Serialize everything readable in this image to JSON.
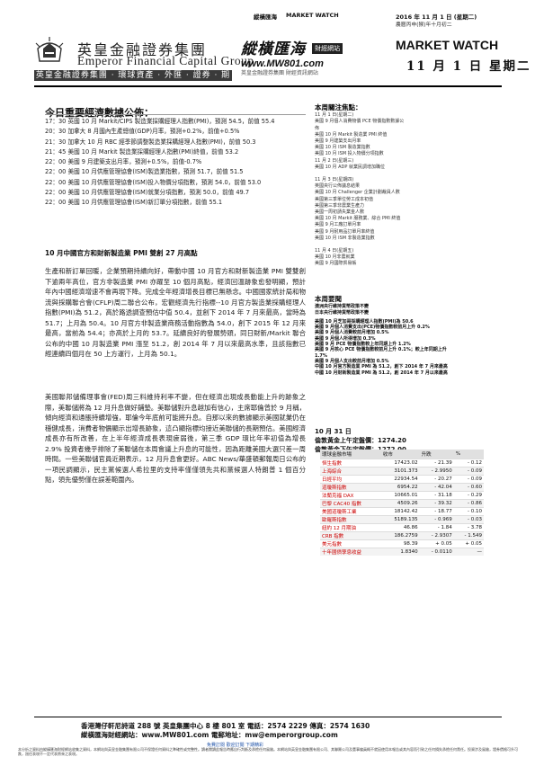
{
  "top": {
    "left_label": "縱橫匯海",
    "mid_label": "MARKET WATCH",
    "date_label": "2016 年 11 月 1 日 (星期二)",
    "issue_note": "農曆丙申(猴)年十月初二"
  },
  "firm": {
    "cn_name": "英皇金融證券集團",
    "en_name": "Emperor Financial Capital Group",
    "banner": "英皇金融證券集團 · 環球資產 · 外匯 · 證券 · 期貨交易"
  },
  "brand": {
    "cn": "縱橫匯海",
    "tag": "財經網站",
    "url": "www.MW801.com",
    "sub": "英皇金融證券集團 財經資訊網站",
    "title": "MARKET WATCH",
    "date": "11 月 1 日  星期二"
  },
  "eco": {
    "heading": "今日重要經濟數據公佈：",
    "items": [
      "17：30  英國 10 月 Markit/CIPS 製造業採購經理人指數(PMI)，預測 54.5，前值 55.4",
      "20：30  加拿大 8 月國內生產總值(GDP)月率，預測+0.2%，前值+0.5%",
      "21：30  加拿大 10 月 RBC 經季節調整製造業採購經理人指數(PMI)，前值 50.3",
      "21：45  美國 10 月 Markit 製造業採購經理人指數(PMI)終值，前值 53.2",
      "22：00  美國 9 月建築支出月率，預測+0.5%，前值-0.7%",
      "22：00  美國 10 月供應管理協會(ISM)製造業指數，預測 51.7，前值 51.5",
      "22：00  美國 10 月供應管理協會(ISM)投入物價分項指數，預測 54.0，前值 53.0",
      "22：00  美國 10 月供應管理協會(ISM)就業分項指數，預測 50.0，前值 49.7",
      "22：00  美國 10 月供應管理協會(ISM)新訂單分項指數，前值 55.1"
    ]
  },
  "side": {
    "heading": "本周關注焦點：",
    "lines": [
      "11 月 1 日(星期二)",
      "美國 9 月個人消費物價 PCE 物價指數數據公佈",
      "美國 10 月 Markit 製造業 PMI 終值",
      "美國 9 月建築支出月率",
      "美國 10 月 ISM 製造業指數",
      "美國 10 月 ISM 投入物價分項指數",
      "11 月 2 日(星期三)",
      "美國 10 月 ADP 就業民調增加職位",
      "",
      "11 月 3 日(星期四)",
      "英國央行公佈議息結果",
      "美國 10 月 Challenger 企業計劃裁員人數",
      "美國第三季單位勞工成本初值",
      "美國第三季非農業生產力",
      "美國一周初請失業金人數",
      "美國 10 月 Markit 服務業、綜合 PMI 終值",
      "美國 9 月工廠訂單月率",
      "美國 9 月耐用品訂單月率終值",
      "美國 10 月 ISM 非製造業指數",
      "",
      "11 月 4 日(星期五)",
      "美國 10 月非農就業",
      "美國 9 月國際貿易帳"
    ]
  },
  "article": {
    "title": "10 月中國官方和財新製造業 PMI 雙創 27 月高點",
    "p1": "生產和新訂單回暖，企業預期持續向好，帶動中國 10 月官方和財新製造業 PMI 雙雙創下逾兩年高位，官方非製造業 PMI 亦躍至 10 個月高點，經濟回溫跡象愈發明顯，預計年內中國經濟增速不會再現下降。完成全年經濟增長目標已無懸念。中國國家統計局和物流與採購聯合會(CFLP)周二聯合公布，宏觀經濟先行指標--10 月官方製造業採購經理人指數(PMI)為 51.2，高於路透調查預估中值 50.4，並創下 2014 年 7 月來最高，當時為 51.7；上月為 50.4。10 月官方非製造業商務活動指數為 54.0，創下 2015 年 12 月來最高，當前為 54.4；亦高於上月的 53.7。延續良好的發展勢頭，同日財新/Markit 聯合公布的中國 10 月製造業 PMI 漲至 51.2，創 2014 年 7 月以來最高水準，且該指數已經連續四個月在 50 上方運行，上月為 50.1。",
    "p2": "美國聯邦儲備理事會(FED)周三料維持利率不變，但在經濟出現成長動能上升的跡象之際，美聯儲將為 12 月升息做好鋪墊。美聯儲對升息越加有信心，主席耶倫曾於 9 月稱，傾向經濟和通脹持續增強，耶倫今年底前可能將升息。自那以來的數據顯示美國就業仍在穩健成長，消費者物價顯示出增長跡象，這凸顯指標均接近美聯儲的長期預估。美國經濟成長亦有所改善，在上半年經濟成長表現疲弱後，第三季 GDP 環比年率初值為增長 2.9% 投資者幾乎排除了美聯儲在本周會議上升息的可能性，因為距離美國大選只差一周時間。一些美聯儲官員近期表示，12 月升息會更好。ABC News/華盛頓郵報周日公布的一項民調顯示，民主黨候選人希拉里的支持率僅僅領先共和黨候選人特朗普 1 個百分點，領先優勢僅在誤差範圍內。"
  },
  "week": {
    "heading": "本周要聞",
    "lines": [
      "澳洲央行維持貨幣政策不變",
      "日本央行維持貨幣政策不變",
      "",
      "美國 10 月芝加哥採購經理人指數(PMI)為 50.6",
      "美國 9 月個人消費支出(PCE)物價指數較前月上升 0.2%",
      "美國 9 月個人消費較前月增加 0.5%",
      "美國 9 月個人所得增加 0.3%",
      "美國 9 月 PCE 物價指數較上年同期上升 1.2%",
      "美國 9 月核心 PCE 物價指數較前月上升 0.1%；較上年同期上升 1.7%",
      "美國 9 月個人支出較前月增加 0.5%",
      "中國 10 月官方製造業 PMI 為 51.2，創下 2014 年 7 月來最高",
      "中國 10 月財新製造業 PMI 為 51.2，創 2014 年 7 月以來最高"
    ]
  },
  "futures": {
    "title": "10 月 31 日",
    "buy": "倫敦黃金上午定盤價：1274.20",
    "sell": "倫敦黃金下午定盤價：1272.00"
  },
  "market": {
    "headers": [
      "環球金融市場",
      "收市",
      "升跌",
      "%"
    ],
    "rows": [
      [
        "恒生指數",
        "17423.02",
        "- 21.39",
        "- 0.12"
      ],
      [
        "上海綜合",
        "3101.373",
        "- 2.9950",
        "- 0.09"
      ],
      [
        "日經平均",
        "22934.54",
        "- 20.27",
        "- 0.09"
      ],
      [
        "道瓊斯指數",
        "6954.22",
        "- 42.04",
        "- 0.60"
      ],
      [
        "法蘭克福 DAX",
        "10665.01",
        "- 31.18",
        "- 0.29"
      ],
      [
        "巴黎 CAC40 指數",
        "4509.26",
        "- 39.32",
        "- 0.86"
      ],
      [
        "美國道瓊斯工業",
        "18142.42",
        "- 18.77",
        "- 0.10"
      ],
      [
        "歐羅斯指數",
        "5189.135",
        "- 0.969",
        "- 0.03"
      ],
      [
        "紐約 12 月期油",
        "46.86",
        "- 1.84",
        "- 3.78"
      ],
      [
        "CRB 指數",
        "186.2759",
        "- 2.9307",
        "- 1.549"
      ],
      [
        "美元指數",
        "98.39",
        "+ 0.05",
        "+ 0.05"
      ],
      [
        "十年國債孳息收益",
        "1.8340",
        "- 0.0110",
        "—"
      ]
    ]
  },
  "footer": {
    "address": "香港灣仔軒尼詩道 288 號 英皇集團中心 8 樓 801 室        電話：2574 2229    傳真：2574 1630",
    "contact": "縱橫匯海財經網站：www.MW801.com            電郵地址：mw@emperorgroup.com",
    "note": "免費訂閱  歡迎訂閱  下期精彩",
    "disclaimer": "本分析之資料由縱橫匯海財經網站收集之資料，本網站與英皇金融集團有限公司不保證任何資料之準確性或完整性。讀者閱讀此報告時應自行判斷及承擔任何風險。本網站與英皇金融集團有限公司、其聯屬公司及董事僱員概不就因使用本報告或其內容而引致之任何損失承擔任何責任。投資涉及風險，證券價格可升可跌，過往表現不一定代表將來之表現。"
  }
}
